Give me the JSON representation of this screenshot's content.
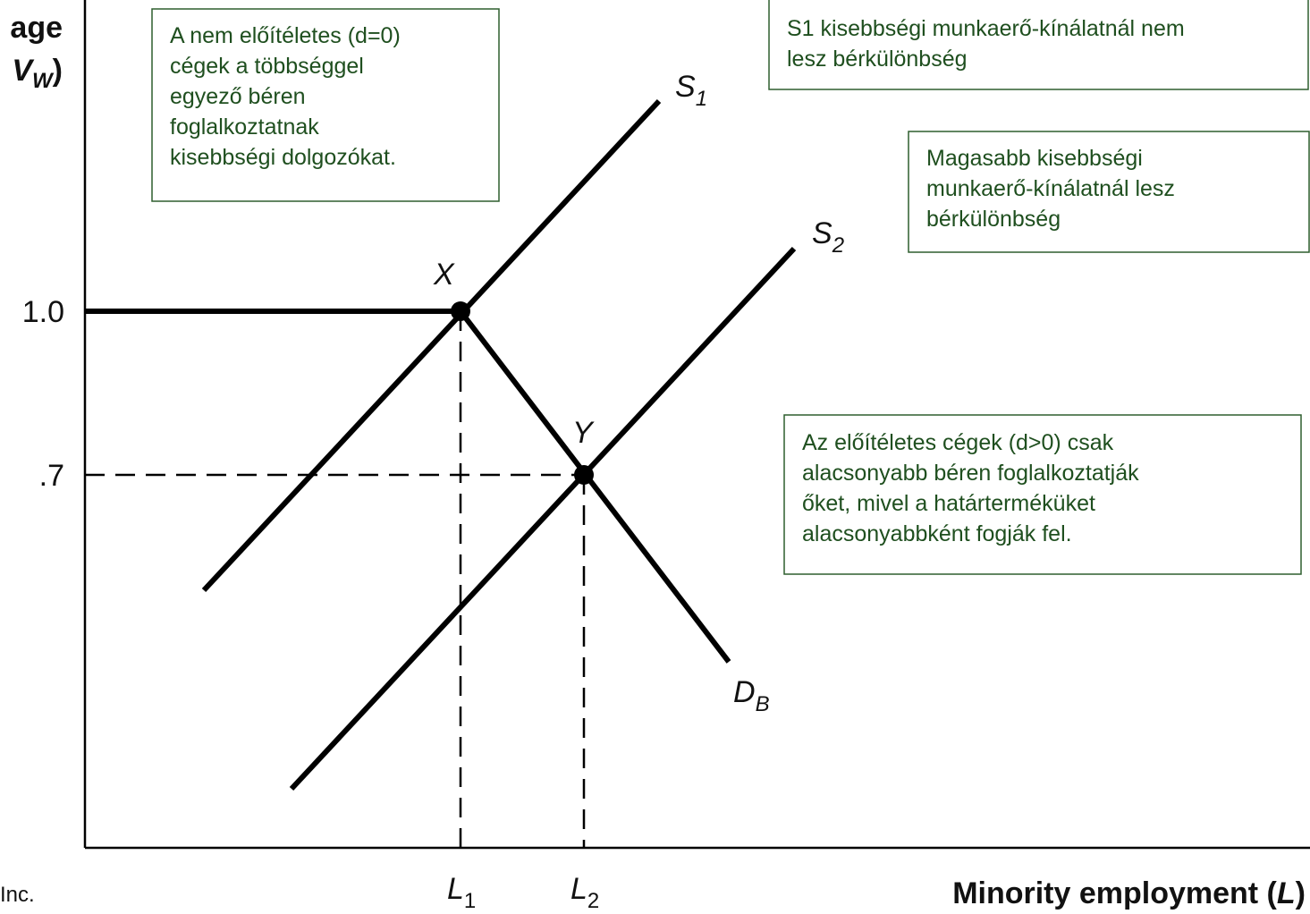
{
  "axis": {
    "y_label_top": "age",
    "y_label_main": "V",
    "y_label_sub": "W",
    "y_label_end": ")",
    "y_tick_high": "1.0",
    "y_tick_low": ".7",
    "x_label_main": "Minority employment (",
    "x_label_var": "L",
    "x_label_end": ")",
    "x_tick_1_main": "L",
    "x_tick_1_sub": "1",
    "x_tick_2_main": "L",
    "x_tick_2_sub": "2"
  },
  "curves": {
    "s1_main": "S",
    "s1_sub": "1",
    "s2_main": "S",
    "s2_sub": "2",
    "db_main": "D",
    "db_sub": "B"
  },
  "points": {
    "x": "X",
    "y": "Y"
  },
  "credit": "Inc.",
  "notes": [
    {
      "lines": [
        "A nem előítéletes (d=0)",
        "cégek a többséggel",
        "egyező béren",
        "foglalkoztatnak",
        "kisebbségi dolgozókat."
      ]
    },
    {
      "lines": [
        "S1 kisebbségi munkaerő-kínálatnál nem",
        "lesz bérkülönbség"
      ]
    },
    {
      "lines": [
        "Magasabb kisebbségi",
        "munkaerő-kínálatnál lesz",
        "bérkülönbség"
      ]
    },
    {
      "lines": [
        "Az előítéletes cégek (d>0) csak",
        "alacsonyabb béren foglalkoztatják",
        "őket, mivel a határterméküket",
        "alacsonyabbként fogják fel."
      ]
    }
  ]
}
